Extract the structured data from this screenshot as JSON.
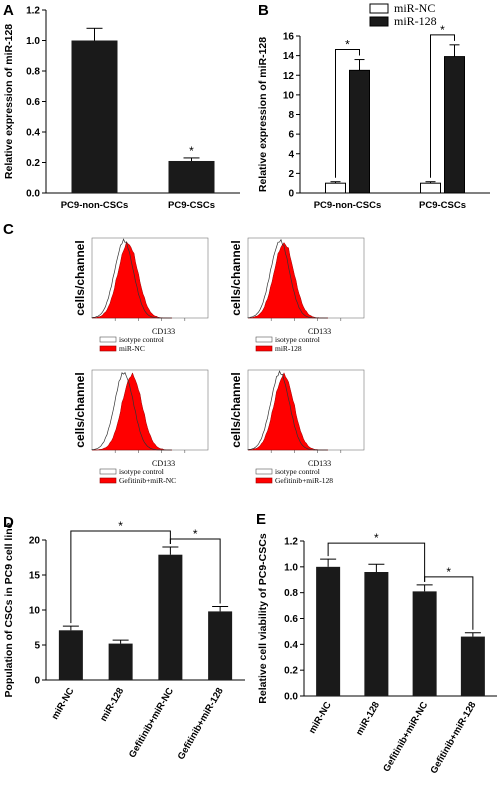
{
  "colors": {
    "bar": "#1a1a1a",
    "flow_fill": "#ff0000",
    "open_bar": "#ffffff"
  },
  "panels": {
    "A": {
      "label": "A"
    },
    "B": {
      "label": "B"
    },
    "C": {
      "label": "C"
    },
    "D": {
      "label": "D"
    },
    "E": {
      "label": "E"
    }
  },
  "flow_panels": [
    {
      "ylabel": "cells/channel",
      "xlabel": "CD133",
      "legend": [
        "isotype control",
        "miR-NC"
      ]
    },
    {
      "ylabel": "cells/channel",
      "xlabel": "CD133",
      "legend": [
        "isotype control",
        "miR-128"
      ]
    },
    {
      "ylabel": "cells/channel",
      "xlabel": "CD133",
      "legend": [
        "isotype control",
        "Gefitinib+miR-NC"
      ]
    },
    {
      "ylabel": "cells/channel",
      "xlabel": "CD133",
      "legend": [
        "isotype control",
        "Gefitinib+miR-128"
      ]
    }
  ],
  "chart_data": [
    {
      "panel": "A",
      "type": "bar",
      "categories": [
        "PC9-non-CSCs",
        "PC9-CSCs"
      ],
      "values": [
        1.0,
        0.21
      ],
      "errors": [
        0.08,
        0.02
      ],
      "ylabel": "Relative expression of miR-128",
      "ylim": [
        0,
        1.2
      ],
      "yticks": [
        "0.0",
        "0.2",
        "0.4",
        "0.6",
        "0.8",
        "1.0",
        "1.2"
      ],
      "significance": "*"
    },
    {
      "panel": "B",
      "type": "bar",
      "categories": [
        "PC9-non-CSCs",
        "PC9-CSCs"
      ],
      "series": [
        {
          "name": "miR-NC",
          "values": [
            1.0,
            1.0
          ],
          "errors": [
            0.15,
            0.15
          ]
        },
        {
          "name": "miR-128",
          "values": [
            12.5,
            13.9
          ],
          "errors": [
            1.1,
            1.2
          ]
        }
      ],
      "ylabel": "Relative expression of miR-128",
      "ylim": [
        0,
        16
      ],
      "yticks": [
        "0",
        "2",
        "4",
        "6",
        "8",
        "10",
        "12",
        "14",
        "16"
      ],
      "legend": "top",
      "significance": "*"
    },
    {
      "panel": "D",
      "type": "bar",
      "categories": [
        "miR-NC",
        "miR-128",
        "Gefitinib+miR-NC",
        "Gefitinib+miR-128"
      ],
      "values": [
        7.1,
        5.2,
        17.9,
        9.8
      ],
      "errors": [
        0.6,
        0.5,
        1.1,
        0.7
      ],
      "ylabel": "Population of CSCs in PC9 cell line",
      "ylim": [
        0,
        20
      ],
      "yticks": [
        "0",
        "5",
        "10",
        "15",
        "20"
      ],
      "significance": "*"
    },
    {
      "panel": "E",
      "type": "bar",
      "categories": [
        "miR-NC",
        "miR-128",
        "Gefitinib+miR-NC",
        "Gefitinib+miR-128"
      ],
      "values": [
        1.0,
        0.96,
        0.81,
        0.46
      ],
      "errors": [
        0.06,
        0.06,
        0.05,
        0.03
      ],
      "ylabel": "Relative cell viability of PC9-CSCs",
      "ylim": [
        0,
        1.2
      ],
      "yticks": [
        "0.0",
        "0.2",
        "0.4",
        "0.6",
        "0.8",
        "1.0",
        "1.2"
      ],
      "significance": "*"
    }
  ]
}
